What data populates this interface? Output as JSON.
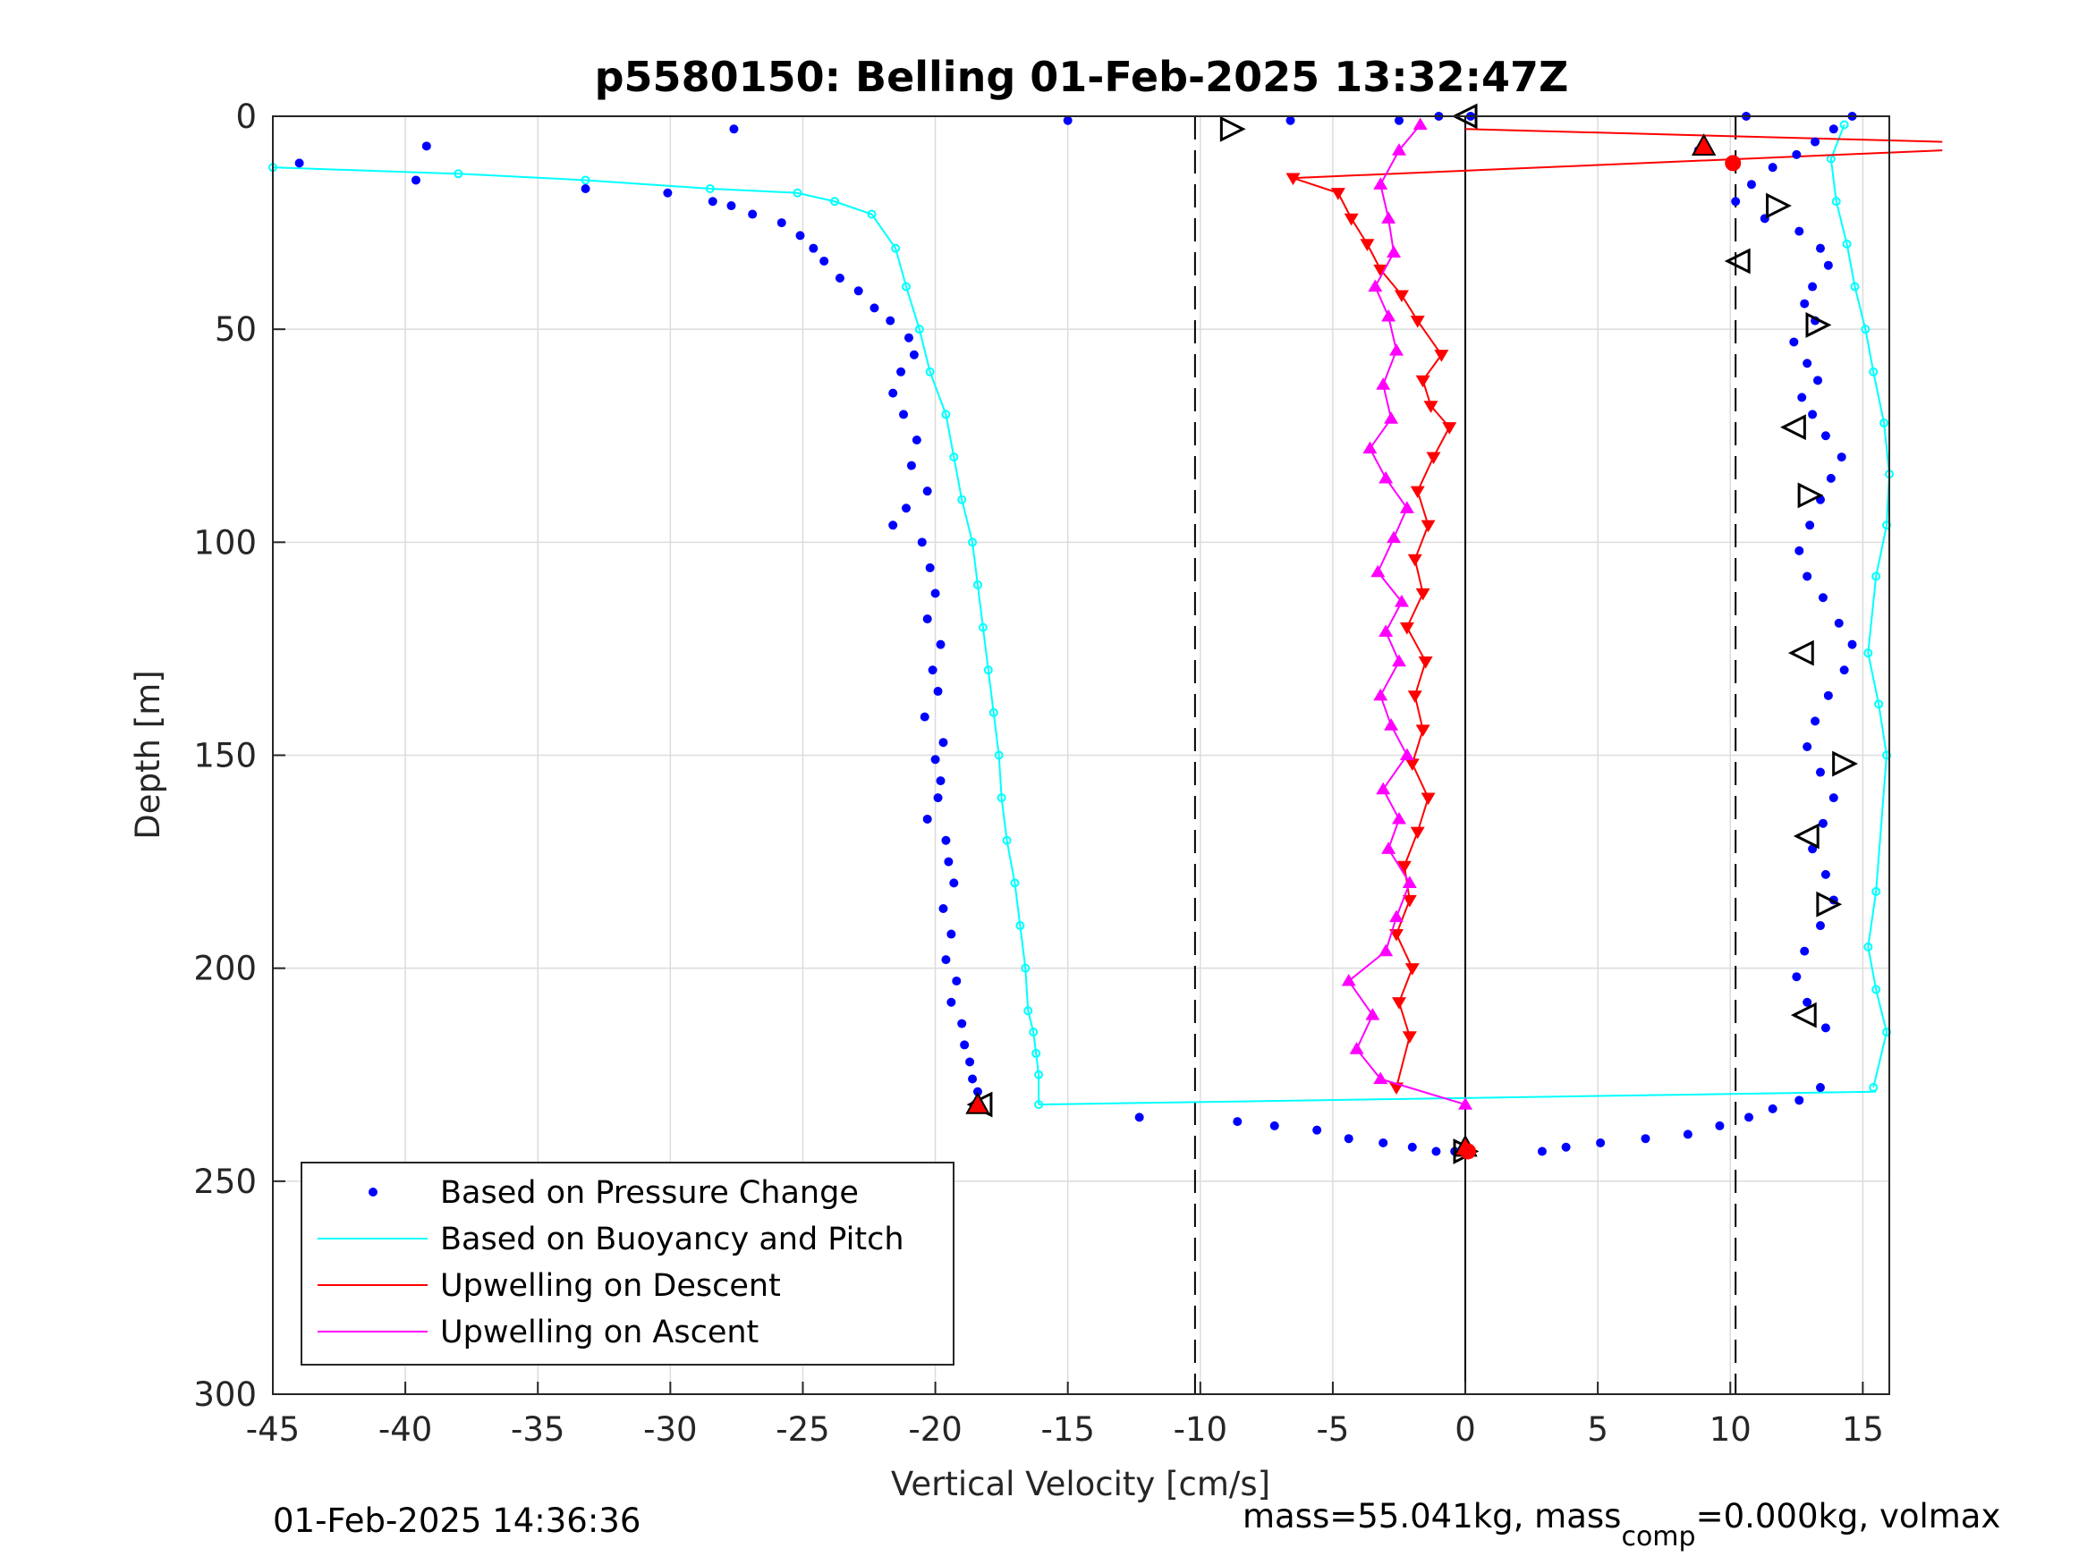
{
  "chart_data": {
    "type": "scatter",
    "title": "p5580150: Belling 01-Feb-2025 13:32:47Z",
    "xlabel": "Vertical Velocity [cm/s]",
    "ylabel": "Depth [m]",
    "xlim": [
      -45,
      16
    ],
    "ylim": [
      0,
      300
    ],
    "y_reversed": true,
    "grid": true,
    "x_ticks": [
      "-45",
      "-40",
      "-35",
      "-30",
      "-25",
      "-20",
      "-15",
      "-10",
      "-5",
      "0",
      "5",
      "10",
      "15"
    ],
    "y_ticks": [
      "0",
      "50",
      "100",
      "150",
      "200",
      "250",
      "300"
    ],
    "reference_lines": [
      {
        "x": -10.2,
        "style": "dashed",
        "color": "#000000"
      },
      {
        "x": 10.2,
        "style": "dashed",
        "color": "#000000"
      },
      {
        "x": 0,
        "style": "solid",
        "color": "#000000"
      }
    ],
    "legend_position": "bottom-left",
    "series": [
      {
        "name": "Based on Pressure Change",
        "color": "#0000ff",
        "marker": "dot",
        "descent": {
          "x": [
            -44,
            -39.2,
            -39.6,
            -33.2,
            -30.1,
            -28.4,
            -27.7,
            -26.9,
            -25.8,
            -25.1,
            -24.6,
            -24.2,
            -23.6,
            -22.9,
            -22.3,
            -21.7,
            -21.0,
            -20.8,
            -21.3,
            -21.6,
            -21.2,
            -20.7,
            -20.9,
            -20.3,
            -21.1,
            -21.6,
            -20.5,
            -20.2,
            -20.0,
            -20.3,
            -19.8,
            -20.1,
            -19.9,
            -20.4,
            -19.7,
            -20.0,
            -19.8,
            -19.9,
            -20.3,
            -19.6,
            -19.5,
            -19.3,
            -19.7,
            -19.4,
            -19.6,
            -19.2,
            -19.4,
            -19.0,
            -18.9,
            -18.7,
            -18.6,
            -18.4,
            -18.5
          ],
          "y": [
            11,
            7,
            15,
            17,
            18,
            20,
            21,
            23,
            25,
            28,
            31,
            34,
            38,
            41,
            45,
            48,
            52,
            56,
            60,
            65,
            70,
            76,
            82,
            88,
            92,
            96,
            100,
            106,
            112,
            118,
            124,
            130,
            135,
            141,
            147,
            151,
            156,
            160,
            165,
            170,
            175,
            180,
            186,
            192,
            198,
            203,
            208,
            213,
            218,
            222,
            226,
            229,
            232
          ]
        },
        "ascent": {
          "x": [
            14.6,
            13.9,
            13.2,
            12.5,
            11.6,
            10.8,
            10.2,
            11.3,
            12.6,
            13.4,
            13.7,
            13.1,
            12.8,
            13.2,
            12.4,
            12.9,
            13.3,
            12.7,
            13.1,
            13.6,
            14.2,
            13.8,
            13.4,
            13.0,
            12.6,
            12.9,
            13.5,
            14.1,
            14.6,
            14.3,
            13.7,
            13.2,
            12.9,
            13.4,
            13.9,
            13.5,
            13.1,
            13.6,
            13.9,
            13.4,
            12.8,
            12.5,
            12.9,
            13.6
          ],
          "y": [
            0,
            3,
            6,
            9,
            12,
            16,
            20,
            24,
            27,
            31,
            35,
            40,
            44,
            48,
            53,
            58,
            62,
            66,
            70,
            75,
            80,
            85,
            90,
            96,
            102,
            108,
            113,
            119,
            124,
            130,
            136,
            142,
            148,
            154,
            160,
            166,
            172,
            178,
            184,
            190,
            196,
            202,
            208,
            214
          ]
        },
        "turn": {
          "x": [
            -12.3,
            -8.6,
            -7.2,
            -5.6,
            -4.4,
            -3.1,
            -2.0,
            -1.1,
            -0.4,
            2.9,
            3.8,
            5.1,
            6.8,
            8.4,
            9.6,
            10.7,
            11.6,
            12.6,
            13.4
          ],
          "y": [
            235,
            236,
            237,
            238,
            240,
            241,
            242,
            243,
            243,
            243,
            242,
            241,
            240,
            239,
            237,
            235,
            233,
            231,
            228
          ]
        },
        "surface_x": [
          -27.6,
          -15.0,
          -6.6,
          -2.5,
          -1.0,
          0.2,
          8.8,
          10.6
        ],
        "surface_y": [
          3,
          1,
          1,
          1,
          0,
          0,
          8,
          0
        ]
      },
      {
        "name": "Based on Buoyancy and Pitch",
        "color": "#00ffff",
        "marker": "open-circle-line",
        "descent": {
          "x": [
            -45,
            -38,
            -33.2,
            -28.5,
            -25.2,
            -23.8,
            -22.4,
            -21.5,
            -21.1,
            -20.6,
            -20.2,
            -19.6,
            -19.3,
            -19.0,
            -18.6,
            -18.4,
            -18.2,
            -18.0,
            -17.8,
            -17.6,
            -17.5,
            -17.3,
            -17.0,
            -16.8,
            -16.6,
            -16.5,
            -16.3,
            -16.2,
            -16.1,
            -16.1
          ],
          "y": [
            12,
            13.5,
            15,
            17,
            18,
            20,
            23,
            31,
            40,
            50,
            60,
            70,
            80,
            90,
            100,
            110,
            120,
            130,
            140,
            150,
            160,
            170,
            180,
            190,
            200,
            210,
            215,
            220,
            225,
            232
          ]
        },
        "bottom_transition": {
          "x": [
            -16.1,
            15.5
          ],
          "y": [
            232,
            229
          ]
        },
        "ascent": {
          "x": [
            14.3,
            13.8,
            14.0,
            14.4,
            14.7,
            15.1,
            15.4,
            15.8,
            16.0,
            15.9,
            15.5,
            15.2,
            15.6,
            15.9,
            15.5,
            15.2,
            15.5,
            15.9,
            15.4
          ],
          "y": [
            2,
            10,
            20,
            30,
            40,
            50,
            60,
            72,
            84,
            96,
            108,
            126,
            138,
            150,
            182,
            195,
            205,
            215,
            228
          ]
        }
      },
      {
        "name": "Upwelling on Descent",
        "color": "#ff0000",
        "marker": "down-triangle-line",
        "x": [
          18,
          -6.5,
          -4.8,
          -4.3,
          -3.7,
          -3.2,
          -2.4,
          -1.8,
          -0.9,
          -1.6,
          -1.3,
          -0.6,
          -1.2,
          -1.8,
          -1.4,
          -1.9,
          -1.6,
          -2.2,
          -1.5,
          -1.9,
          -1.6,
          -2.0,
          -1.4,
          -1.8,
          -2.3,
          -2.1,
          -2.6,
          -2.0,
          -2.5,
          -2.1,
          -2.6
        ],
        "y": [
          8,
          14.5,
          18,
          24,
          30,
          36,
          42,
          48,
          56,
          62,
          68,
          73,
          80,
          88,
          96,
          104,
          112,
          120,
          128,
          136,
          144,
          152,
          160,
          168,
          176,
          184,
          192,
          200,
          208,
          216,
          228
        ],
        "start_segment": {
          "x": [
            0,
            18
          ],
          "y": [
            3,
            6
          ]
        }
      },
      {
        "name": "Upwelling on Ascent",
        "color": "#ff00ff",
        "marker": "up-triangle-line",
        "x": [
          0,
          -3.2,
          -4.1,
          -3.5,
          -4.4,
          -3.0,
          -2.6,
          -2.1,
          -2.9,
          -2.5,
          -3.1,
          -2.2,
          -2.8,
          -3.2,
          -2.5,
          -3.0,
          -2.4,
          -3.3,
          -2.7,
          -2.2,
          -3.0,
          -3.6,
          -2.8,
          -3.1,
          -2.6,
          -2.9,
          -3.4,
          -2.7,
          -2.9,
          -3.2,
          -2.5,
          -1.7
        ],
        "y": [
          232,
          226,
          219,
          211,
          203,
          196,
          188,
          180,
          172,
          165,
          158,
          150,
          143,
          136,
          128,
          121,
          114,
          107,
          99,
          92,
          85,
          78,
          71,
          63,
          55,
          47,
          40,
          32,
          24,
          16,
          8,
          2
        ]
      }
    ],
    "markers": {
      "black_open_triangles": {
        "x": [
          -8.8,
          0,
          11.8,
          10.3,
          13.3,
          12.4,
          13.0,
          12.7,
          14.3,
          12.9,
          13.7,
          12.8,
          0,
          -18.3
        ],
        "y": [
          3,
          0,
          21,
          34,
          49,
          73,
          89,
          126,
          152,
          169,
          185,
          211,
          243,
          232
        ]
      },
      "red_filled_triangles": {
        "x": [
          9.0,
          0,
          -18.4
        ],
        "y": [
          7,
          242,
          232
        ]
      },
      "red_filled_circles": {
        "x": [
          10.1,
          0.1
        ],
        "y": [
          11,
          243
        ]
      }
    }
  },
  "footer": {
    "timestamp": "01-Feb-2025 14:36:36",
    "mass_prefix": "mass=55.041kg, mass",
    "mass_sub": "comp",
    "mass_suffix": "=0.000kg, volmax"
  }
}
